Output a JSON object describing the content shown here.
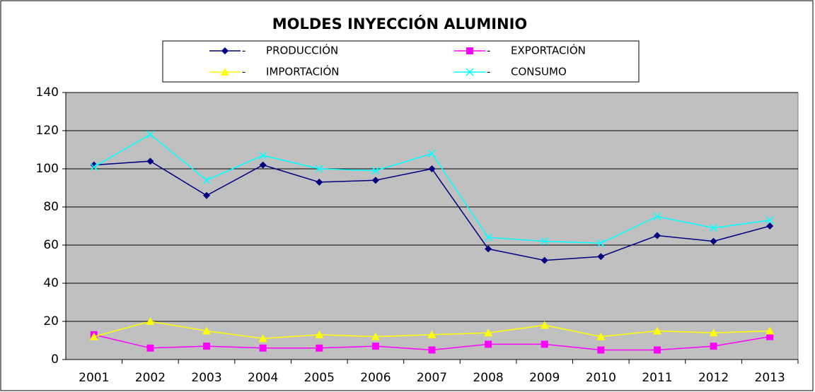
{
  "chart_data": {
    "type": "line",
    "title": "MOLDES INYECCIÓN ALUMINIO",
    "categories": [
      "2001",
      "2002",
      "2003",
      "2004",
      "2005",
      "2006",
      "2007",
      "2008",
      "2009",
      "2010",
      "2011",
      "2012",
      "2013"
    ],
    "series": [
      {
        "name": "-      PRODUCCIÓN",
        "color": "#000080",
        "marker": "diamond",
        "values": [
          102,
          104,
          86,
          102,
          93,
          94,
          100,
          58,
          52,
          54,
          65,
          62,
          70
        ]
      },
      {
        "name": "-      EXPORTACIÓN",
        "color": "#ff00ff",
        "marker": "square",
        "values": [
          13,
          6,
          7,
          6,
          6,
          7,
          5,
          8,
          8,
          5,
          5,
          7,
          12
        ]
      },
      {
        "name": "-      IMPORTACIÓN",
        "color": "#ffff00",
        "marker": "triangle",
        "values": [
          12,
          20,
          15,
          11,
          13,
          12,
          13,
          14,
          18,
          12,
          15,
          14,
          15
        ]
      },
      {
        "name": "-      CONSUMO",
        "color": "#00ffff",
        "marker": "x",
        "values": [
          101,
          118,
          94,
          107,
          100,
          99,
          108,
          64,
          62,
          61,
          75,
          69,
          73
        ]
      }
    ],
    "ylim": [
      0,
      140
    ],
    "yticks": [
      0,
      20,
      40,
      60,
      80,
      100,
      120,
      140
    ],
    "grid": true,
    "legend": "top",
    "plot_background": "#c0c0c0"
  }
}
